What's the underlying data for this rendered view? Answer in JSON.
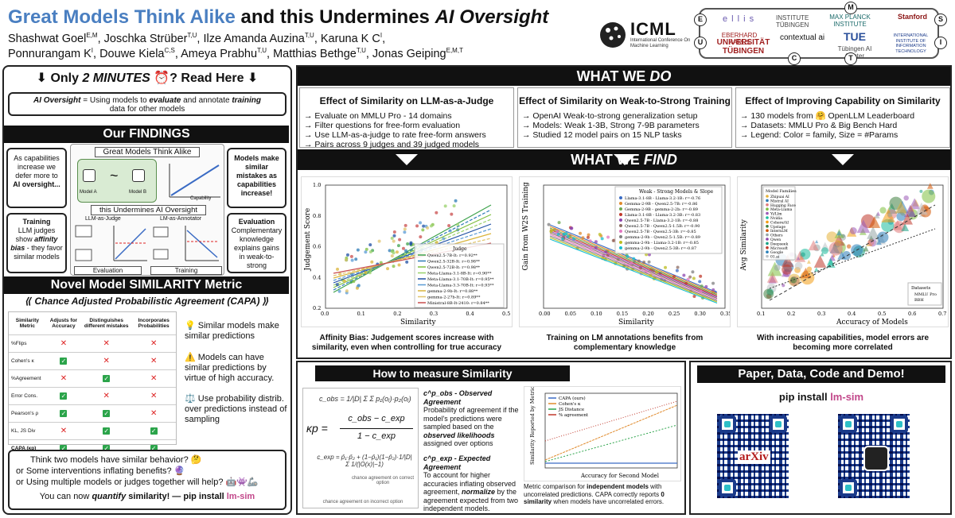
{
  "header": {
    "title_blue": "Great Models Think Alike",
    "title_mid": " and this Undermines ",
    "title_it": "AI Oversight",
    "authors_line1": "Shashwat Goel",
    "authors_line1_sup": "E,M",
    "authors_line1_rest": ", Joschka Strüber",
    "authors_a_sup": "T,U",
    "authors_b": ", Ilze Amanda Auzina",
    "authors_b_sup": "T,U",
    "authors_c": ", Karuna K C",
    "authors_c_sup": "I",
    "authors_c2": ",",
    "authors_line2_a": "Ponnurangam K",
    "authors_line2_a_sup": "I",
    "authors_line2_b": ", Douwe Kiela",
    "authors_line2_b_sup": "C,S",
    "authors_line2_c": ", Ameya Prabhu",
    "authors_line2_c_sup": "T,U",
    "authors_line2_d": ", Matthias Bethge",
    "authors_line2_d_sup": "T,U",
    "authors_line2_e": ", Jonas Geiping",
    "authors_line2_e_sup": "E,M,T",
    "icml": {
      "name": "ICML",
      "sub": "International Conference On Machine Learning"
    },
    "logos": {
      "ellis": "e l l i s",
      "institute_tub": "INSTITUTE TÜBINGEN",
      "mpi": "MAX PLANCK INSTITUTE",
      "stanford": "Stanford",
      "eberhard": "EBERHARD KARLS",
      "uni_tub": "UNIVERSITÄT TÜBINGEN",
      "contextual": "contextual ai",
      "tai": "Tübingen AI Center",
      "iiit": "INTERNATIONAL INSTITUTE OF INFORMATION TECHNOLOGY",
      "circles": [
        "E",
        "M",
        "S",
        "U",
        "I",
        "C",
        "T"
      ]
    }
  },
  "left": {
    "top_banner": "⬇ Only 2 MINUTES ⏰? Read Here ⬇",
    "top_banner_a": "⬇ Only ",
    "top_banner_b": "2 MINUTES",
    "top_banner_c": " ⏰? Read Here ⬇",
    "ai_oversight_label": "AI Oversight",
    "ai_oversight_text1": " = Using models to ",
    "ai_oversight_evaluate": "evaluate",
    "ai_oversight_text2": " and annotate ",
    "ai_oversight_training": "training",
    "ai_oversight_text3": " data for other models",
    "findings_title": "Our FINDINGS",
    "finding_left1": "As capabilities increase we defer more to",
    "finding_left1_b": "AI oversight...",
    "finding_left2_a": "Training",
    "finding_left2_b": "LLM judges show",
    "finding_left2_c": "affinity bias",
    "finding_left2_d": " - they favor similar models",
    "finding_right1": "Models make similar mistakes as capabilities increase!",
    "finding_right2_a": "Evaluation",
    "finding_right2_b": "Complementary knowledge explains gains in weak-to-strong",
    "diagram": {
      "top": "Great Models Think Alike",
      "model_a": "Model A",
      "model_b": "Model B",
      "capability": "Capability",
      "similarity": "Similarity",
      "mid": "this Undermines AI Oversight",
      "judge": "LLM-as-Judge",
      "annotator": "LM-as-Annotator",
      "judge_small": "Judge",
      "affinity": "Affinity bias",
      "data": "Data",
      "annotator_small": "Annotator",
      "student": "Student",
      "evaluation": "Evaluation",
      "training": "Training"
    },
    "metric_title": "Novel Model SIMILARITY Metric",
    "capa": "Chance Adjusted Probabilistic Agreement (CAPA)",
    "table": {
      "headers": [
        "Similarity Metric",
        "Adjusts for Accuracy",
        "Distinguishes different mistakes",
        "Incorporates Probabilities"
      ],
      "rows": [
        {
          "name": "%Flips",
          "v": [
            "x",
            "x",
            "x"
          ]
        },
        {
          "name": "Cohen's κ",
          "v": [
            "ok",
            "x",
            "x"
          ]
        },
        {
          "name": "%Agreement",
          "v": [
            "x",
            "ok",
            "x"
          ]
        },
        {
          "name": "Error Cons.",
          "v": [
            "ok",
            "x",
            "x"
          ]
        },
        {
          "name": "Pearson's ρ",
          "v": [
            "ok",
            "ok",
            "x"
          ]
        },
        {
          "name": "KL, JS Div",
          "v": [
            "x",
            "ok",
            "ok"
          ]
        },
        {
          "name": "CAPA (κp)",
          "v": [
            "ok",
            "ok",
            "ok"
          ]
        }
      ]
    },
    "points": [
      "💡 Similar models make similar predictions",
      "⚠️ Models can have similar predictions by virtue of high accuracy.",
      "⚖️ Use probability distrib. over predictions instead of sampling"
    ],
    "questions": [
      "Think two models have similar behavior? 🤔",
      "or  Some interventions inflating benefits? 🔮",
      "or  Using multiple models or judges together will help? 🤖👾🦾"
    ],
    "quantify_a": "You can now ",
    "quantify_b": "quantify",
    "quantify_c": " similarity! — pip install ",
    "quantify_pkg": "lm-sim"
  },
  "do": {
    "title_a": "WHAT WE ",
    "title_b": "DO",
    "cols": [
      {
        "head": "Effect of Similarity on LLM-as-a-Judge",
        "items": [
          "→ Evaluate on MMLU Pro - 14 domains",
          "→ Filter questions for free-form evaluation",
          "→ Use LLM-as-a-judge to rate free-form answers",
          "→ Pairs across 9 judges and 39 judged models"
        ]
      },
      {
        "head": "Effect of Similarity on Weak-to-Strong Training",
        "items": [
          "→ OpenAI Weak-to-strong generalization setup",
          "→ Models: Weak 1-3B, Strong 7-9B parameters",
          "→ Studied 12 model pairs on 15 NLP tasks"
        ]
      },
      {
        "head": "Effect of Improving Capability on Similarity",
        "items": [
          "→ 130 models from 🤗 OpenLLM Leaderboard",
          "→ Datasets: MMLU Pro & Big Bench Hard",
          "→ Legend: Color = family, Size = #Params"
        ]
      }
    ]
  },
  "find": {
    "title_a": "WHAT WE ",
    "title_b": "FIND",
    "captions": [
      "Affinity Bias: Judgement scores increase with similarity, even when controlling for true accuracy",
      "Training on LM annotations benefits from complementary knowledge",
      "With increasing capabilities, model errors are becoming more correlated"
    ]
  },
  "chart_data": [
    {
      "type": "scatter",
      "xlabel": "Similarity",
      "ylabel": "Judgement Score",
      "xlim": [
        0.0,
        0.5
      ],
      "ylim": [
        0.2,
        1.0
      ],
      "x_ticks": [
        "0.0",
        "0.1",
        "0.2",
        "0.3",
        "0.4",
        "0.5"
      ],
      "y_ticks": [
        "0.2",
        "0.4",
        "0.6",
        "0.8",
        "1.0"
      ],
      "legend_title": "Judge",
      "series": [
        {
          "name": "Qwen2.5-7B-It: r=0.92**",
          "color": "#3fa34d"
        },
        {
          "name": "Qwen2.5-32B-It: r=0.98**",
          "color": "#2c7bb6"
        },
        {
          "name": "Qwen2.5-72B-It: r=0.98**",
          "color": "#7fbf3f"
        },
        {
          "name": "Meta-Llama-3.1-8B-It: r=0.90**",
          "color": "#98d06a"
        },
        {
          "name": "Meta-Llama-3.1-70B-It: r=0.95**",
          "color": "#1f4fa3"
        },
        {
          "name": "Meta-Llama-3.3-70B-It: r=0.93**",
          "color": "#5a9bd5"
        },
        {
          "name": "gemma-2-9b-It: r=0.88**",
          "color": "#d9b43a"
        },
        {
          "name": "gemma-2-27b-It: r=0.89**",
          "color": "#e0c36b"
        },
        {
          "name": "Ministral-8B-It-2410: r=0.84**",
          "color": "#c94c4c"
        }
      ]
    },
    {
      "type": "scatter",
      "xlabel": "Similarity",
      "ylabel": "Gain from W2S Training",
      "xlim": [
        0.0,
        0.35
      ],
      "ylim": [
        -0.02,
        0.18
      ],
      "x_ticks": [
        "0.00",
        "0.05",
        "0.10",
        "0.15",
        "0.20",
        "0.25",
        "0.30",
        "0.35"
      ],
      "legend_title": "Weak - Strong Models & Slope",
      "series": [
        {
          "name": "Llama-3.1-8B - Llama-3.2-1B: r=-0.76",
          "color": "#3a6bc4"
        },
        {
          "name": "Gemma-2-9B - Qwen2.5-7B: r=-0.86",
          "color": "#e08a2c"
        },
        {
          "name": "Gemma-2-9B - gemma-2-2b: r=-0.89",
          "color": "#6aa84f"
        },
        {
          "name": "Llama-3.1-8B - Llama-3.2-3B: r=-0.83",
          "color": "#c0392b"
        },
        {
          "name": "Qwen2.5-7B - Llama-3.2-1B: r=-0.88",
          "color": "#8e44ad"
        },
        {
          "name": "Qwen2.5-7B - Qwen2.5-1.5B: r=-0.90",
          "color": "#8d6e63"
        },
        {
          "name": "Qwen2.5-7B - Qwen2.5-3B: r=-0.85",
          "color": "#e377c2"
        },
        {
          "name": "gemma-2-9b - Qwen2.5-1.5B: r=-0.89",
          "color": "#7f7f7f"
        },
        {
          "name": "gemma-2-9b - Llama-3.2-1B: r=-0.85",
          "color": "#bcbd22"
        },
        {
          "name": "gemma-2-9b - Qwen2.5-3B: r=-0.87",
          "color": "#17becf"
        }
      ]
    },
    {
      "type": "scatter",
      "xlabel": "Accuracy of Models",
      "ylabel": "Avg Similarity",
      "xlim": [
        0.1,
        0.7
      ],
      "ylim": [
        0.0,
        0.7
      ],
      "x_ticks": [
        "0.1",
        "0.2",
        "0.3",
        "0.4",
        "0.5",
        "0.6",
        "0.7"
      ],
      "legend_title": "Model Families",
      "families": [
        "Zhipuai AI",
        "Mistral AI",
        "Hugging Face",
        "Meta-Llama",
        "Yi/Llm",
        "Nvidia",
        "Cohere/AI",
        "Upstage",
        "InternLM",
        "Others",
        "Qwen",
        "Deepseek",
        "Microsoft",
        "Google",
        "01.ai"
      ],
      "datasets_title": "Datasets",
      "datasets": [
        "MMLU Pro",
        "BBH"
      ]
    },
    {
      "type": "line",
      "xlabel": "Accuracy for Second Model",
      "ylabel": "Similarity Reported by Metric",
      "series": [
        {
          "name": "CAPA (ours)",
          "color": "#3a6bc4"
        },
        {
          "name": "Cohen's κ",
          "color": "#e08a2c"
        },
        {
          "name": "JS Distance",
          "color": "#2ba44a"
        },
        {
          "name": "% agreement",
          "color": "#c0392b"
        }
      ]
    }
  ],
  "measure": {
    "title": "How to measure Similarity",
    "obs_title": "c^p_obs - Observed Agreement",
    "obs_text_a": "Probability of agreement if the model's predictions were sampled based on the ",
    "obs_text_b": "observed likelihoods",
    "obs_text_c": " assigned over options",
    "exp_title": "c^p_exp - Expected Agreement",
    "exp_text_a": "To account for higher accuracies inflating observed agreement, ",
    "exp_text_b": "normalize",
    "exp_text_c": " by the agreement expected from two independent models.",
    "metric_caption_a": "Metric comparison for ",
    "metric_caption_b": "independent models",
    "metric_caption_c": " with uncorrelated predictions. CAPA correctly reports ",
    "metric_caption_d": "0 similarity",
    "metric_caption_e": " when models have uncorrelated errors.",
    "formula_kappa": "κp =",
    "formula_num": "c_obs − c_exp",
    "formula_den": "1 − c_exp",
    "label_correct": "chance agreement on correct option",
    "label_incorrect": "chance agreement on incorrect option"
  },
  "paper": {
    "title": "Paper, Data, Code and Demo!",
    "pip_a": "pip install ",
    "pip_b": "lm-sim",
    "arxiv": "arXiv"
  },
  "colors": {
    "accent_blue": "#4a7fc1",
    "pkg_pink": "#c2478a",
    "check_green": "#2ba44a",
    "cross_red": "#d22222",
    "qr_blue": "#1a3a8a"
  }
}
